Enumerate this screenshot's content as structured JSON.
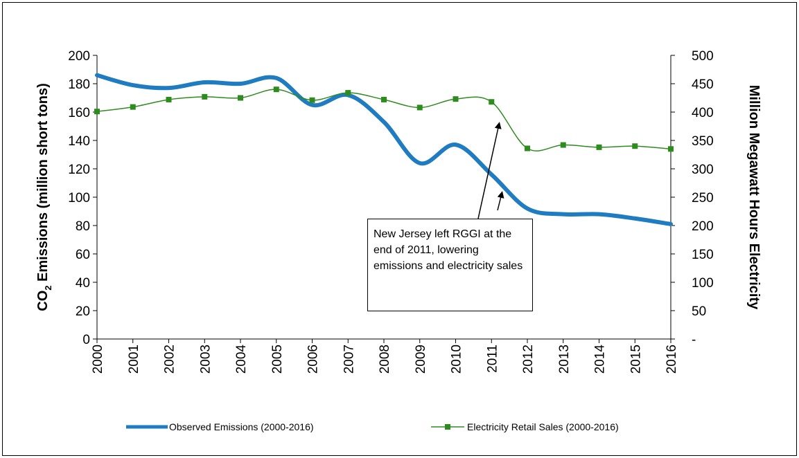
{
  "chart_data": {
    "type": "line",
    "title": "",
    "x": [
      "2000",
      "2001",
      "2002",
      "2003",
      "2004",
      "2005",
      "2006",
      "2007",
      "2008",
      "2009",
      "2010",
      "2011",
      "2012",
      "2013",
      "2014",
      "2015",
      "2016"
    ],
    "y_left": {
      "label_prefix": "CO",
      "label_sub": "2",
      "label_suffix": " Emissions (million short tons)",
      "ylim": [
        0,
        200
      ],
      "ticks": [
        "0",
        "20",
        "40",
        "60",
        "80",
        "100",
        "120",
        "140",
        "160",
        "180",
        "200"
      ]
    },
    "y_right": {
      "label": "Million Megawatt Hours Electricity",
      "ylim": [
        0,
        500
      ],
      "ticks": [
        "-",
        "50",
        "100",
        "150",
        "200",
        "250",
        "300",
        "350",
        "400",
        "450",
        "500"
      ]
    },
    "series": [
      {
        "name": "Observed Emissions (2000-2016)",
        "axis": "left",
        "color": "#1f7cc1",
        "values": [
          186,
          179,
          177,
          181,
          180,
          184,
          165,
          172,
          153,
          124,
          137,
          116,
          92,
          88,
          88,
          85,
          81
        ]
      },
      {
        "name": "Electricity Retail Sales (2000-2016)",
        "axis": "right",
        "color": "#2e8b1e",
        "values": [
          401,
          409,
          422,
          427,
          425,
          440,
          421,
          434,
          422,
          408,
          423,
          418,
          336,
          342,
          338,
          340,
          335
        ]
      }
    ],
    "grid": false,
    "legend_position": "bottom",
    "annotation": {
      "text": "New Jersey left RGGI at the end of 2011, lowering emissions and electricity sales"
    }
  }
}
